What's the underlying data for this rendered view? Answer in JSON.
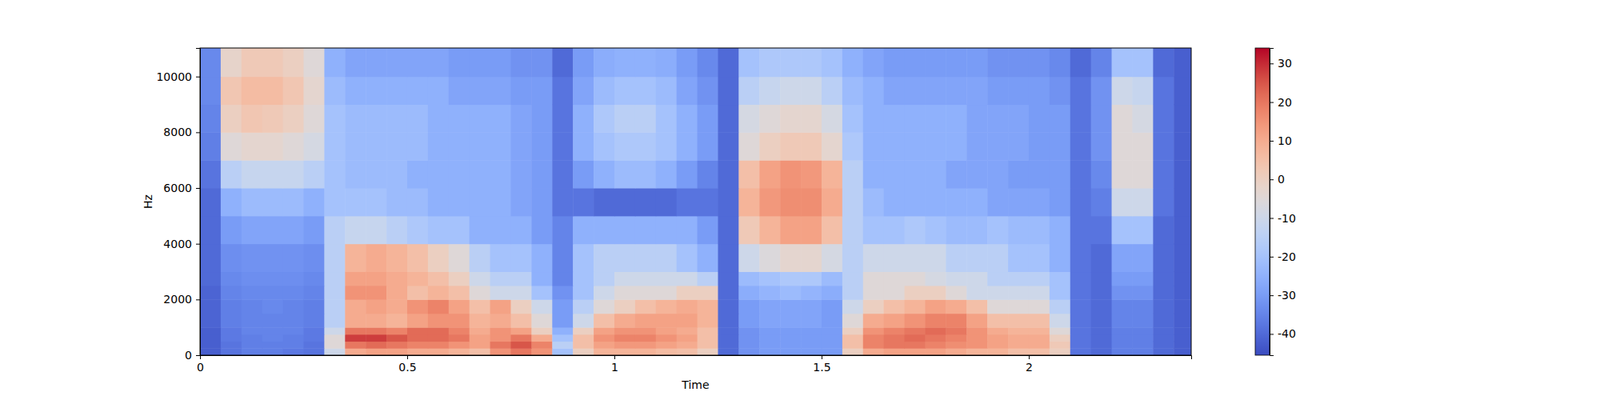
{
  "chart_data": {
    "type": "heatmap",
    "x_label": "Time",
    "y_label": "Hz",
    "xlim": [
      0,
      2.392
    ],
    "ylim": [
      0,
      11025
    ],
    "xticks": [
      0,
      0.5,
      1,
      1.5,
      2
    ],
    "yticks": [
      0,
      2000,
      4000,
      6000,
      8000,
      10000
    ],
    "x_edges": [
      0,
      0.05,
      0.1,
      0.15,
      0.2,
      0.25,
      0.3,
      0.35,
      0.4,
      0.45,
      0.5,
      0.55,
      0.6,
      0.65,
      0.7,
      0.75,
      0.8,
      0.85,
      0.9,
      0.95,
      1.0,
      1.05,
      1.1,
      1.15,
      1.2,
      1.25,
      1.3,
      1.35,
      1.4,
      1.45,
      1.5,
      1.55,
      1.6,
      1.65,
      1.7,
      1.75,
      1.8,
      1.85,
      1.9,
      1.95,
      2.0,
      2.05,
      2.1,
      2.15,
      2.2,
      2.25,
      2.3,
      2.35,
      2.392
    ],
    "y_edges": [
      0,
      250,
      500,
      750,
      1000,
      1500,
      2000,
      2500,
      3000,
      4000,
      5000,
      6000,
      7000,
      8000,
      9000,
      10000,
      11025
    ],
    "z": [
      [
        -42,
        -38,
        -36,
        -36,
        -37,
        -38,
        -10,
        10,
        12,
        12,
        10,
        10,
        8,
        5,
        15,
        20,
        15,
        -20,
        0,
        8,
        8,
        8,
        6,
        5,
        0,
        -40,
        -32,
        -30,
        -30,
        -30,
        -30,
        0,
        10,
        12,
        12,
        12,
        10,
        8,
        8,
        5,
        5,
        0,
        -38,
        -40,
        -36,
        -36,
        -40,
        -42
      ],
      [
        -42,
        -38,
        -36,
        -36,
        -36,
        -38,
        -5,
        20,
        22,
        20,
        18,
        18,
        15,
        12,
        20,
        25,
        18,
        -15,
        5,
        12,
        14,
        14,
        12,
        10,
        5,
        -40,
        -32,
        -30,
        -30,
        -30,
        -30,
        5,
        18,
        20,
        20,
        18,
        16,
        15,
        12,
        10,
        10,
        2,
        -38,
        -40,
        -36,
        -36,
        -40,
        -42
      ],
      [
        -42,
        -37,
        -36,
        -35,
        -36,
        -37,
        -5,
        28,
        28,
        25,
        22,
        22,
        20,
        12,
        15,
        20,
        10,
        -20,
        5,
        15,
        18,
        18,
        15,
        12,
        5,
        -40,
        -32,
        -30,
        -30,
        -30,
        -30,
        5,
        18,
        20,
        22,
        20,
        18,
        15,
        12,
        10,
        10,
        0,
        -38,
        -40,
        -36,
        -36,
        -40,
        -42
      ],
      [
        -42,
        -37,
        -35,
        -35,
        -35,
        -37,
        -10,
        20,
        20,
        18,
        22,
        22,
        18,
        10,
        15,
        12,
        0,
        -25,
        0,
        12,
        15,
        15,
        12,
        10,
        5,
        -40,
        -32,
        -30,
        -30,
        -30,
        -30,
        0,
        15,
        18,
        20,
        22,
        20,
        15,
        10,
        8,
        8,
        -5,
        -38,
        -40,
        -36,
        -36,
        -40,
        -42
      ],
      [
        -41,
        -36,
        -35,
        -35,
        -35,
        -36,
        -15,
        10,
        10,
        8,
        12,
        15,
        15,
        8,
        10,
        5,
        -5,
        -30,
        -10,
        5,
        10,
        12,
        12,
        12,
        8,
        -40,
        -30,
        -28,
        -28,
        -28,
        -30,
        -5,
        10,
        12,
        15,
        18,
        18,
        12,
        5,
        5,
        5,
        -10,
        -38,
        -40,
        -35,
        -35,
        -40,
        -42
      ],
      [
        -41,
        -36,
        -35,
        -34,
        -35,
        -36,
        -15,
        10,
        12,
        10,
        15,
        18,
        12,
        5,
        12,
        0,
        -10,
        -30,
        -15,
        -5,
        0,
        5,
        8,
        10,
        8,
        -40,
        -30,
        -28,
        -28,
        -28,
        -30,
        -10,
        0,
        5,
        8,
        12,
        10,
        5,
        -5,
        -5,
        -5,
        -15,
        -38,
        -40,
        -35,
        -35,
        -40,
        -42
      ],
      [
        -41,
        -35,
        -34,
        -34,
        -34,
        -35,
        -15,
        15,
        15,
        10,
        5,
        8,
        5,
        -5,
        -10,
        -10,
        -20,
        -32,
        -20,
        -10,
        -5,
        -5,
        -5,
        0,
        0,
        -40,
        -26,
        -24,
        -22,
        -24,
        -26,
        -15,
        -5,
        -5,
        0,
        0,
        -5,
        -10,
        -10,
        -10,
        -10,
        -20,
        -38,
        -40,
        -32,
        -32,
        -40,
        -42
      ],
      [
        -40,
        -34,
        -33,
        -33,
        -33,
        -34,
        -15,
        12,
        12,
        10,
        8,
        5,
        0,
        -10,
        -15,
        -15,
        -25,
        -35,
        -20,
        -15,
        -10,
        -10,
        -10,
        -10,
        -15,
        -40,
        -22,
        -20,
        -18,
        -18,
        -22,
        -15,
        -5,
        -5,
        -5,
        -8,
        -10,
        -10,
        -15,
        -15,
        -15,
        -20,
        -38,
        -40,
        -30,
        -30,
        -40,
        -42
      ],
      [
        -40,
        -33,
        -32,
        -32,
        -32,
        -33,
        -15,
        8,
        10,
        8,
        5,
        0,
        -5,
        -15,
        -20,
        -20,
        -25,
        -35,
        -20,
        -15,
        -15,
        -15,
        -15,
        -20,
        -25,
        -40,
        -10,
        -6,
        -3,
        -3,
        -8,
        -15,
        -10,
        -10,
        -10,
        -10,
        -15,
        -15,
        -15,
        -20,
        -20,
        -25,
        -38,
        -40,
        -28,
        -28,
        -40,
        -42
      ],
      [
        -40,
        -30,
        -28,
        -28,
        -28,
        -30,
        -15,
        -12,
        -12,
        -15,
        -18,
        -20,
        -20,
        -25,
        -25,
        -25,
        -30,
        -35,
        -25,
        -25,
        -25,
        -25,
        -25,
        -25,
        -30,
        -40,
        2,
        8,
        12,
        12,
        5,
        -15,
        -20,
        -20,
        -18,
        -20,
        -22,
        -22,
        -20,
        -22,
        -22,
        -25,
        -38,
        -38,
        -20,
        -20,
        -40,
        -42
      ],
      [
        -40,
        -25,
        -22,
        -22,
        -22,
        -25,
        -20,
        -20,
        -20,
        -22,
        -22,
        -25,
        -25,
        -25,
        -25,
        -28,
        -30,
        -38,
        -38,
        -40,
        -40,
        -40,
        -40,
        -38,
        -38,
        -40,
        8,
        14,
        16,
        16,
        10,
        -15,
        -22,
        -25,
        -25,
        -25,
        -25,
        -25,
        -28,
        -28,
        -28,
        -30,
        -38,
        -36,
        -10,
        -10,
        -38,
        -42
      ],
      [
        -38,
        -15,
        -12,
        -12,
        -12,
        -15,
        -20,
        -22,
        -22,
        -22,
        -25,
        -25,
        -25,
        -25,
        -25,
        -28,
        -30,
        -38,
        -30,
        -25,
        -22,
        -22,
        -25,
        -30,
        -35,
        -40,
        5,
        12,
        15,
        14,
        8,
        -15,
        -25,
        -25,
        -25,
        -25,
        -28,
        -28,
        -28,
        -30,
        -30,
        -30,
        -38,
        -34,
        -5,
        -5,
        -38,
        -42
      ],
      [
        -36,
        -5,
        -3,
        -3,
        -5,
        -8,
        -20,
        -22,
        -22,
        -22,
        -22,
        -25,
        -25,
        -25,
        -25,
        -28,
        -30,
        -38,
        -25,
        -20,
        -18,
        -18,
        -20,
        -25,
        -30,
        -40,
        -5,
        0,
        2,
        2,
        -3,
        -18,
        -25,
        -25,
        -25,
        -25,
        -25,
        -28,
        -28,
        -28,
        -30,
        -30,
        -38,
        -32,
        -5,
        -5,
        -38,
        -42
      ],
      [
        -35,
        0,
        3,
        2,
        0,
        -5,
        -20,
        -22,
        -22,
        -22,
        -22,
        -25,
        -25,
        -25,
        -25,
        -28,
        -30,
        -38,
        -25,
        -18,
        -15,
        -15,
        -20,
        -25,
        -30,
        -40,
        -8,
        -5,
        -3,
        -3,
        -8,
        -20,
        -25,
        -25,
        -25,
        -25,
        -25,
        -28,
        -28,
        -28,
        -30,
        -30,
        -38,
        -32,
        -5,
        -8,
        -38,
        -42
      ],
      [
        -34,
        3,
        6,
        6,
        3,
        -3,
        -22,
        -25,
        -25,
        -25,
        -25,
        -25,
        -28,
        -28,
        -28,
        -30,
        -30,
        -38,
        -28,
        -22,
        -20,
        -20,
        -22,
        -28,
        -32,
        -40,
        -15,
        -12,
        -10,
        -10,
        -15,
        -22,
        -25,
        -28,
        -28,
        -28,
        -28,
        -28,
        -30,
        -30,
        -30,
        -32,
        -38,
        -32,
        -10,
        -12,
        -38,
        -42
      ],
      [
        -34,
        -2,
        2,
        2,
        0,
        -5,
        -25,
        -28,
        -28,
        -28,
        -28,
        -28,
        -30,
        -30,
        -30,
        -32,
        -32,
        -40,
        -30,
        -26,
        -25,
        -25,
        -26,
        -30,
        -34,
        -40,
        -20,
        -18,
        -18,
        -18,
        -20,
        -25,
        -28,
        -30,
        -30,
        -30,
        -30,
        -30,
        -32,
        -32,
        -32,
        -34,
        -40,
        -35,
        -20,
        -20,
        -40,
        -42
      ]
    ],
    "colorbar": {
      "range": [
        -45.5,
        34
      ],
      "ticks": [
        -40,
        -30,
        -20,
        -10,
        0,
        10,
        20,
        30
      ]
    }
  }
}
